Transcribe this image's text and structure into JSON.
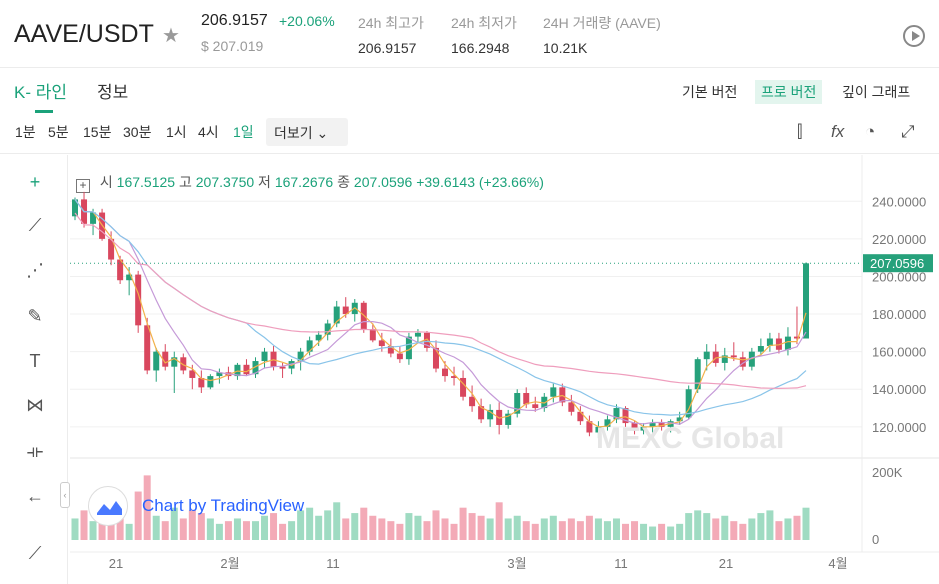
{
  "header": {
    "pair": "AAVE/USDT",
    "price": "206.9157",
    "change_pct": "+20.06%",
    "usd_price": "$ 207.019",
    "stats": [
      {
        "label": "24h 최고가",
        "value": "206.9157"
      },
      {
        "label": "24h 최저가",
        "value": "166.2948"
      },
      {
        "label": "24H 거래량 (AAVE)",
        "value": "10.21K"
      }
    ]
  },
  "tabs": [
    {
      "label": "K- 라인",
      "active": true
    },
    {
      "label": "정보",
      "active": false
    }
  ],
  "views": [
    {
      "label": "기본 버전",
      "active": false
    },
    {
      "label": "프로 버전",
      "active": true
    },
    {
      "label": "깊이 그래프",
      "active": false
    }
  ],
  "timeframes": [
    "1분",
    "5분",
    "15분",
    "30분",
    "1시",
    "4시",
    "1일"
  ],
  "active_timeframe": "1일",
  "more_label": "더보기",
  "ohlc": {
    "open_label": "시",
    "open": "167.5125",
    "high_label": "고",
    "high": "207.3750",
    "low_label": "저",
    "low": "167.2676",
    "close_label": "종",
    "close": "207.0596",
    "change": "+39.6143 (+23.66%)"
  },
  "watermark": "MEXC Global",
  "tradingview_label": "Chart by TradingView",
  "chart_data": {
    "type": "candlestick",
    "price_axis": {
      "ticks": [
        "240.0000",
        "220.0000",
        "200.0000",
        "180.0000",
        "160.0000",
        "140.0000",
        "120.0000"
      ],
      "range": [
        113,
        246
      ]
    },
    "last_price_label": "207.0596",
    "volume_axis": {
      "ticks": [
        "200K",
        "0"
      ]
    },
    "x_ticks": [
      "21",
      "2월",
      "11",
      "3월",
      "11",
      "21",
      "4월"
    ],
    "colors": {
      "up": "#26a17b",
      "down": "#d9475e",
      "volume_up": "#9fdbc2",
      "volume_down": "#f3aab7",
      "ma_fast": "#f2b14a",
      "ma_mid": "#c59ad8",
      "ma_slow1": "#89c4e9",
      "ma_slow2": "#ef9ebd"
    },
    "candles": [
      [
        232,
        242,
        230,
        241,
        40
      ],
      [
        241,
        245,
        226,
        228,
        55
      ],
      [
        228,
        236,
        222,
        234,
        35
      ],
      [
        234,
        236,
        219,
        220,
        80
      ],
      [
        220,
        224,
        206,
        209,
        60
      ],
      [
        209,
        211,
        196,
        198,
        50
      ],
      [
        198,
        205,
        190,
        201,
        30
      ],
      [
        201,
        203,
        170,
        174,
        90
      ],
      [
        174,
        178,
        148,
        150,
        120
      ],
      [
        150,
        162,
        144,
        160,
        45
      ],
      [
        160,
        164,
        150,
        152,
        35
      ],
      [
        152,
        160,
        138,
        157,
        60
      ],
      [
        157,
        159,
        148,
        150,
        40
      ],
      [
        150,
        153,
        140,
        146,
        55
      ],
      [
        146,
        150,
        138,
        141,
        50
      ],
      [
        141,
        148,
        140,
        147,
        40
      ],
      [
        147,
        151,
        143,
        149,
        30
      ],
      [
        149,
        152,
        145,
        147,
        35
      ],
      [
        147,
        154,
        145,
        153,
        40
      ],
      [
        153,
        156,
        147,
        148,
        35
      ],
      [
        148,
        157,
        146,
        155,
        35
      ],
      [
        155,
        162,
        151,
        160,
        45
      ],
      [
        160,
        163,
        150,
        152,
        50
      ],
      [
        152,
        154,
        146,
        151,
        30
      ],
      [
        151,
        156,
        148,
        155,
        35
      ],
      [
        155,
        162,
        150,
        160,
        55
      ],
      [
        160,
        168,
        158,
        166,
        60
      ],
      [
        166,
        171,
        163,
        169,
        45
      ],
      [
        169,
        177,
        166,
        175,
        55
      ],
      [
        175,
        187,
        173,
        184,
        70
      ],
      [
        184,
        189,
        178,
        180,
        40
      ],
      [
        180,
        188,
        176,
        186,
        50
      ],
      [
        186,
        187,
        170,
        172,
        60
      ],
      [
        172,
        175,
        165,
        166,
        45
      ],
      [
        166,
        170,
        160,
        163,
        40
      ],
      [
        163,
        167,
        157,
        159,
        35
      ],
      [
        159,
        163,
        154,
        156,
        30
      ],
      [
        156,
        170,
        153,
        168,
        50
      ],
      [
        168,
        172,
        165,
        170,
        45
      ],
      [
        170,
        171,
        160,
        162,
        35
      ],
      [
        162,
        166,
        149,
        151,
        55
      ],
      [
        151,
        155,
        144,
        147,
        40
      ],
      [
        147,
        152,
        142,
        146,
        30
      ],
      [
        146,
        150,
        134,
        136,
        60
      ],
      [
        136,
        142,
        128,
        131,
        50
      ],
      [
        131,
        135,
        122,
        124,
        45
      ],
      [
        124,
        132,
        120,
        129,
        40
      ],
      [
        129,
        133,
        116,
        121,
        70
      ],
      [
        121,
        129,
        119,
        127,
        40
      ],
      [
        127,
        140,
        125,
        138,
        45
      ],
      [
        138,
        141,
        130,
        132,
        35
      ],
      [
        132,
        136,
        128,
        130,
        30
      ],
      [
        130,
        138,
        128,
        136,
        40
      ],
      [
        136,
        143,
        133,
        141,
        45
      ],
      [
        141,
        143,
        131,
        133,
        35
      ],
      [
        133,
        137,
        126,
        128,
        40
      ],
      [
        128,
        131,
        121,
        123,
        35
      ],
      [
        123,
        126,
        115,
        117,
        45
      ],
      [
        117,
        123,
        114,
        120,
        40
      ],
      [
        120,
        126,
        118,
        124,
        35
      ],
      [
        124,
        132,
        122,
        130,
        40
      ],
      [
        130,
        131,
        120,
        122,
        30
      ],
      [
        122,
        123,
        116,
        118,
        35
      ],
      [
        118,
        122,
        116,
        120,
        30
      ],
      [
        120,
        124,
        117,
        122,
        25
      ],
      [
        122,
        124,
        118,
        120,
        30
      ],
      [
        120,
        124,
        117,
        123,
        25
      ],
      [
        123,
        128,
        121,
        125,
        30
      ],
      [
        125,
        142,
        124,
        140,
        50
      ],
      [
        140,
        157,
        138,
        156,
        55
      ],
      [
        156,
        164,
        150,
        160,
        50
      ],
      [
        160,
        164,
        152,
        154,
        40
      ],
      [
        154,
        162,
        150,
        158,
        45
      ],
      [
        158,
        165,
        155,
        157,
        35
      ],
      [
        157,
        160,
        150,
        152,
        30
      ],
      [
        152,
        162,
        150,
        160,
        40
      ],
      [
        160,
        167,
        158,
        163,
        50
      ],
      [
        163,
        170,
        160,
        167,
        55
      ],
      [
        167,
        170,
        159,
        161,
        35
      ],
      [
        161,
        173,
        158,
        168,
        40
      ],
      [
        168,
        184,
        164,
        167,
        45
      ],
      [
        167,
        207.4,
        167,
        207,
        60
      ]
    ]
  }
}
